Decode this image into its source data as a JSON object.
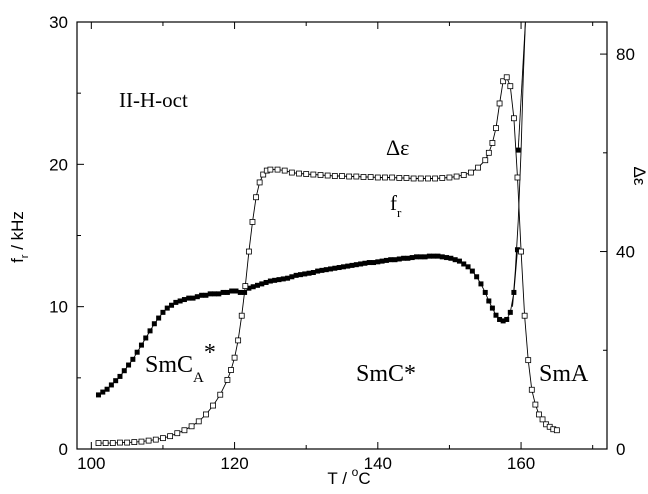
{
  "chart_data": {
    "type": "scatter",
    "title": "",
    "xlabel": {
      "base": "T / ",
      "sup": "o",
      "tail": "C"
    },
    "ylabel_left": {
      "base": "f",
      "sub": "r",
      "tail": " / kHz"
    },
    "ylabel_right": "Δε",
    "xlim": [
      98,
      172
    ],
    "ylim_left": [
      0,
      30
    ],
    "ylim_right": [
      0,
      86.5
    ],
    "x_ticks": [
      100,
      120,
      140,
      160
    ],
    "y_left_ticks": [
      0,
      10,
      20,
      30
    ],
    "y_right_ticks": [
      0,
      40,
      80
    ],
    "grid": false,
    "annotations": {
      "sample": "II-H-oct",
      "delta_eps": "Δε",
      "fr": {
        "base": "f",
        "sub": "r"
      },
      "smca": {
        "base": "SmC",
        "sub": "A",
        "sup": "*"
      },
      "smc": "SmC*",
      "sma": "SmA"
    },
    "series": [
      {
        "marker": "filled-square",
        "axis": "left",
        "x": [
          101.0,
          101.6,
          102.2,
          102.8,
          103.4,
          104.0,
          104.6,
          105.2,
          105.8,
          106.4,
          107.0,
          107.6,
          108.2,
          108.8,
          109.4,
          110.0,
          110.6,
          111.2,
          111.8,
          112.4,
          113.0,
          113.6,
          114.2,
          114.8,
          115.4,
          116.0,
          116.6,
          117.2,
          117.8,
          118.4,
          119.0,
          119.6,
          120.2,
          120.8,
          121.4,
          122.0,
          122.6,
          123.2,
          123.8,
          124.4,
          125.0,
          125.6,
          126.2,
          126.8,
          127.4,
          128.0,
          128.6,
          129.2,
          129.8,
          130.4,
          131.0,
          131.6,
          132.2,
          132.8,
          133.4,
          134.0,
          134.6,
          135.2,
          135.8,
          136.4,
          137.0,
          137.6,
          138.2,
          138.8,
          139.4,
          140.0,
          140.6,
          141.2,
          141.8,
          142.4,
          143.0,
          143.6,
          144.2,
          144.8,
          145.4,
          146.0,
          146.6,
          147.2,
          147.8,
          148.4,
          149.0,
          149.6,
          150.2,
          150.8,
          151.4,
          152.0,
          152.6,
          153.2,
          153.8,
          154.4,
          155.0,
          155.5,
          156.0,
          156.5,
          157.0,
          157.5,
          158.0,
          158.5,
          159.0,
          159.5
        ],
        "y": [
          3.8,
          4.0,
          4.2,
          4.5,
          4.8,
          5.1,
          5.5,
          5.9,
          6.3,
          6.8,
          7.3,
          7.8,
          8.3,
          8.8,
          9.2,
          9.6,
          9.9,
          10.1,
          10.3,
          10.4,
          10.5,
          10.6,
          10.6,
          10.7,
          10.8,
          10.8,
          10.9,
          10.9,
          10.9,
          11.0,
          11.0,
          11.1,
          11.1,
          11.0,
          11.0,
          11.3,
          11.4,
          11.5,
          11.6,
          11.7,
          11.8,
          11.85,
          11.9,
          11.95,
          12.0,
          12.1,
          12.2,
          12.25,
          12.3,
          12.35,
          12.4,
          12.5,
          12.55,
          12.6,
          12.65,
          12.7,
          12.75,
          12.8,
          12.85,
          12.9,
          12.95,
          13.0,
          13.05,
          13.1,
          13.1,
          13.15,
          13.2,
          13.25,
          13.3,
          13.3,
          13.35,
          13.4,
          13.4,
          13.45,
          13.5,
          13.5,
          13.5,
          13.55,
          13.55,
          13.55,
          13.5,
          13.45,
          13.4,
          13.3,
          13.2,
          13.0,
          12.8,
          12.5,
          12.1,
          11.6,
          11.0,
          10.4,
          9.9,
          9.4,
          9.1,
          9.0,
          9.1,
          9.6,
          11.0,
          14.0
        ]
      },
      {
        "marker": "open-square",
        "axis": "right",
        "x": [
          101.0,
          102.0,
          103.0,
          104.0,
          105.0,
          106.0,
          107.0,
          108.0,
          109.0,
          110.0,
          111.0,
          112.0,
          113.0,
          114.0,
          115.0,
          116.0,
          117.0,
          118.0,
          119.0,
          119.5,
          120.0,
          120.5,
          121.0,
          121.5,
          122.0,
          122.5,
          123.0,
          123.5,
          124.0,
          124.5,
          125.0,
          126.0,
          127.0,
          128.0,
          129.0,
          130.0,
          131.0,
          132.0,
          133.0,
          134.0,
          135.0,
          136.0,
          137.0,
          138.0,
          139.0,
          140.0,
          141.0,
          142.0,
          143.0,
          144.0,
          145.0,
          146.0,
          147.0,
          148.0,
          149.0,
          150.0,
          151.0,
          152.0,
          153.0,
          154.0,
          155.0,
          155.5,
          156.0,
          156.5,
          157.0,
          157.5,
          158.0,
          158.5,
          159.0,
          159.5,
          160.0,
          160.5,
          161.0,
          161.5,
          162.0,
          162.5,
          163.0,
          163.5,
          164.0,
          164.5,
          165.0
        ],
        "y": [
          1.2,
          1.2,
          1.2,
          1.3,
          1.3,
          1.4,
          1.5,
          1.7,
          1.9,
          2.2,
          2.6,
          3.2,
          3.8,
          4.6,
          5.6,
          7.0,
          8.8,
          11.0,
          14.0,
          16.0,
          18.5,
          22.0,
          27.0,
          33.0,
          40.0,
          46.0,
          51.0,
          54.0,
          55.6,
          56.4,
          56.6,
          56.6,
          56.4,
          56.0,
          55.8,
          55.7,
          55.6,
          55.5,
          55.4,
          55.3,
          55.3,
          55.2,
          55.2,
          55.1,
          55.1,
          55.0,
          55.0,
          55.0,
          54.9,
          54.9,
          54.8,
          54.8,
          54.8,
          54.8,
          54.9,
          55.0,
          55.2,
          55.5,
          56.0,
          57.0,
          58.5,
          60.0,
          62.0,
          65.0,
          70.0,
          74.5,
          75.3,
          73.5,
          67.0,
          55.0,
          40.0,
          27.0,
          18.0,
          12.0,
          9.0,
          7.0,
          6.0,
          5.0,
          4.5,
          4.0,
          3.8
        ]
      }
    ],
    "curves": [
      {
        "name": "",
        "axis": "left",
        "note": "thin solid line through filled squares"
      },
      {
        "name": "",
        "axis": "right",
        "note": "thin solid line through open squares"
      }
    ],
    "steep_rise": {
      "axis": "left",
      "x": [
        158.8,
        159.2,
        159.6,
        160.0,
        160.3,
        160.6
      ],
      "y": [
        10.0,
        12.5,
        16.0,
        21.0,
        26.0,
        30.0
      ]
    }
  }
}
